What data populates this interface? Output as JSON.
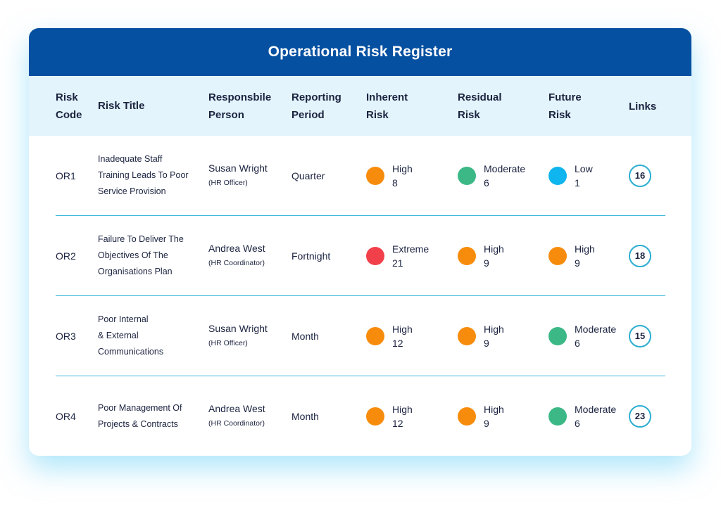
{
  "title": "Operational Risk Register",
  "colors": {
    "header": "#0550a0",
    "header_band": "#e3f4fc",
    "separator": "#3cb8d8",
    "high": "#f78c0c",
    "moderate": "#3bb886",
    "low": "#0eb5ef",
    "extreme": "#f2404a"
  },
  "columns": [
    {
      "line1": "Risk",
      "line2": "Code"
    },
    {
      "line1": "Risk Title",
      "line2": ""
    },
    {
      "line1": "Responsbile",
      "line2": "Person"
    },
    {
      "line1": "Reporting",
      "line2": "Period"
    },
    {
      "line1": "Inherent",
      "line2": "Risk"
    },
    {
      "line1": "Residual",
      "line2": "Risk"
    },
    {
      "line1": "Future",
      "line2": "Risk"
    },
    {
      "line1": "Links",
      "line2": ""
    }
  ],
  "rows": [
    {
      "code": "OR1",
      "title": [
        "Inadequate Staff",
        "Training Leads To Poor",
        "Service Provision"
      ],
      "person": "Susan Wright",
      "role": "(HR Officer)",
      "period": "Quarter",
      "inherent": {
        "level": "High",
        "score": "8",
        "color": "#f78c0c"
      },
      "residual": {
        "level": "Moderate",
        "score": "6",
        "color": "#3bb886"
      },
      "future": {
        "level": "Low",
        "score": "1",
        "color": "#0eb5ef"
      },
      "links": "16"
    },
    {
      "code": "OR2",
      "title": [
        "Failure To Deliver The",
        "Objectives Of The",
        "Organisations Plan"
      ],
      "person": "Andrea West",
      "role": "(HR Coordinator)",
      "period": "Fortnight",
      "inherent": {
        "level": "Extreme",
        "score": "21",
        "color": "#f2404a"
      },
      "residual": {
        "level": "High",
        "score": "9",
        "color": "#f78c0c"
      },
      "future": {
        "level": "High",
        "score": "9",
        "color": "#f78c0c"
      },
      "links": "18"
    },
    {
      "code": "OR3",
      "title": [
        "Poor Internal",
        "& External",
        "Communications"
      ],
      "person": "Susan Wright",
      "role": "(HR Officer)",
      "period": "Month",
      "inherent": {
        "level": "High",
        "score": "12",
        "color": "#f78c0c"
      },
      "residual": {
        "level": "High",
        "score": "9",
        "color": "#f78c0c"
      },
      "future": {
        "level": "Moderate",
        "score": "6",
        "color": "#3bb886"
      },
      "links": "15"
    },
    {
      "code": "OR4",
      "title": [
        "Poor Management Of",
        "Projects & Contracts"
      ],
      "person": "Andrea West",
      "role": "(HR Coordinator)",
      "period": "Month",
      "inherent": {
        "level": "High",
        "score": "12",
        "color": "#f78c0c"
      },
      "residual": {
        "level": "High",
        "score": "9",
        "color": "#f78c0c"
      },
      "future": {
        "level": "Moderate",
        "score": "6",
        "color": "#3bb886"
      },
      "links": "23"
    }
  ]
}
